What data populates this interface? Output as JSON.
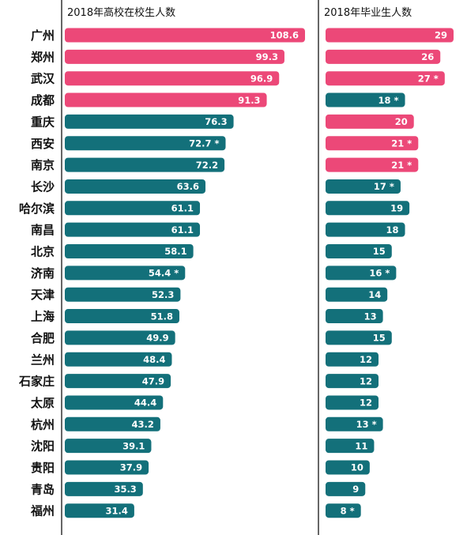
{
  "colors": {
    "highlight": "#ec4878",
    "normal": "#13707a",
    "axis": "#333333",
    "label": "#111111"
  },
  "chart_data": {
    "type": "bar",
    "orientation": "horizontal",
    "categories": [
      "广州",
      "郑州",
      "武汉",
      "成都",
      "重庆",
      "西安",
      "南京",
      "长沙",
      "哈尔滨",
      "南昌",
      "北京",
      "济南",
      "天津",
      "上海",
      "合肥",
      "兰州",
      "石家庄",
      "太原",
      "杭州",
      "沈阳",
      "贵阳",
      "青岛",
      "福州"
    ],
    "panels": [
      {
        "title": "2018年高校在校生人数",
        "values": [
          108.6,
          99.3,
          96.9,
          91.3,
          76.3,
          72.7,
          72.2,
          63.6,
          61.1,
          61.1,
          58.1,
          54.4,
          52.3,
          51.8,
          49.9,
          48.4,
          47.9,
          44.4,
          43.2,
          39.1,
          37.9,
          35.3,
          31.4
        ],
        "labels": [
          "108.6",
          "99.3",
          "96.9",
          "91.3",
          "76.3",
          "72.7 *",
          "72.2",
          "63.6",
          "61.1",
          "61.1",
          "58.1",
          "54.4 *",
          "52.3",
          "51.8",
          "49.9",
          "48.4",
          "47.9",
          "44.4",
          "43.2",
          "39.1",
          "37.9",
          "35.3",
          "31.4"
        ],
        "highlighted": [
          true,
          true,
          true,
          true,
          false,
          false,
          false,
          false,
          false,
          false,
          false,
          false,
          false,
          false,
          false,
          false,
          false,
          false,
          false,
          false,
          false,
          false,
          false
        ],
        "xlim": [
          0,
          110
        ]
      },
      {
        "title": "2018年毕业生人数",
        "values": [
          29,
          26,
          27,
          18,
          20,
          21,
          21,
          17,
          19,
          18,
          15,
          16,
          14,
          13,
          15,
          12,
          12,
          12,
          13,
          11,
          10,
          9,
          8
        ],
        "labels": [
          "29",
          "26",
          "27 *",
          "18 *",
          "20",
          "21 *",
          "21 *",
          "17 *",
          "19",
          "18",
          "15",
          "16 *",
          "14",
          "13",
          "15",
          "12",
          "12",
          "12",
          "13 *",
          "11",
          "10",
          "9",
          "8 *"
        ],
        "highlighted": [
          true,
          true,
          true,
          false,
          true,
          true,
          true,
          false,
          false,
          false,
          false,
          false,
          false,
          false,
          false,
          false,
          false,
          false,
          false,
          false,
          false,
          false,
          false
        ],
        "xlim": [
          0,
          30
        ]
      }
    ],
    "grid": false,
    "legend": "none"
  }
}
